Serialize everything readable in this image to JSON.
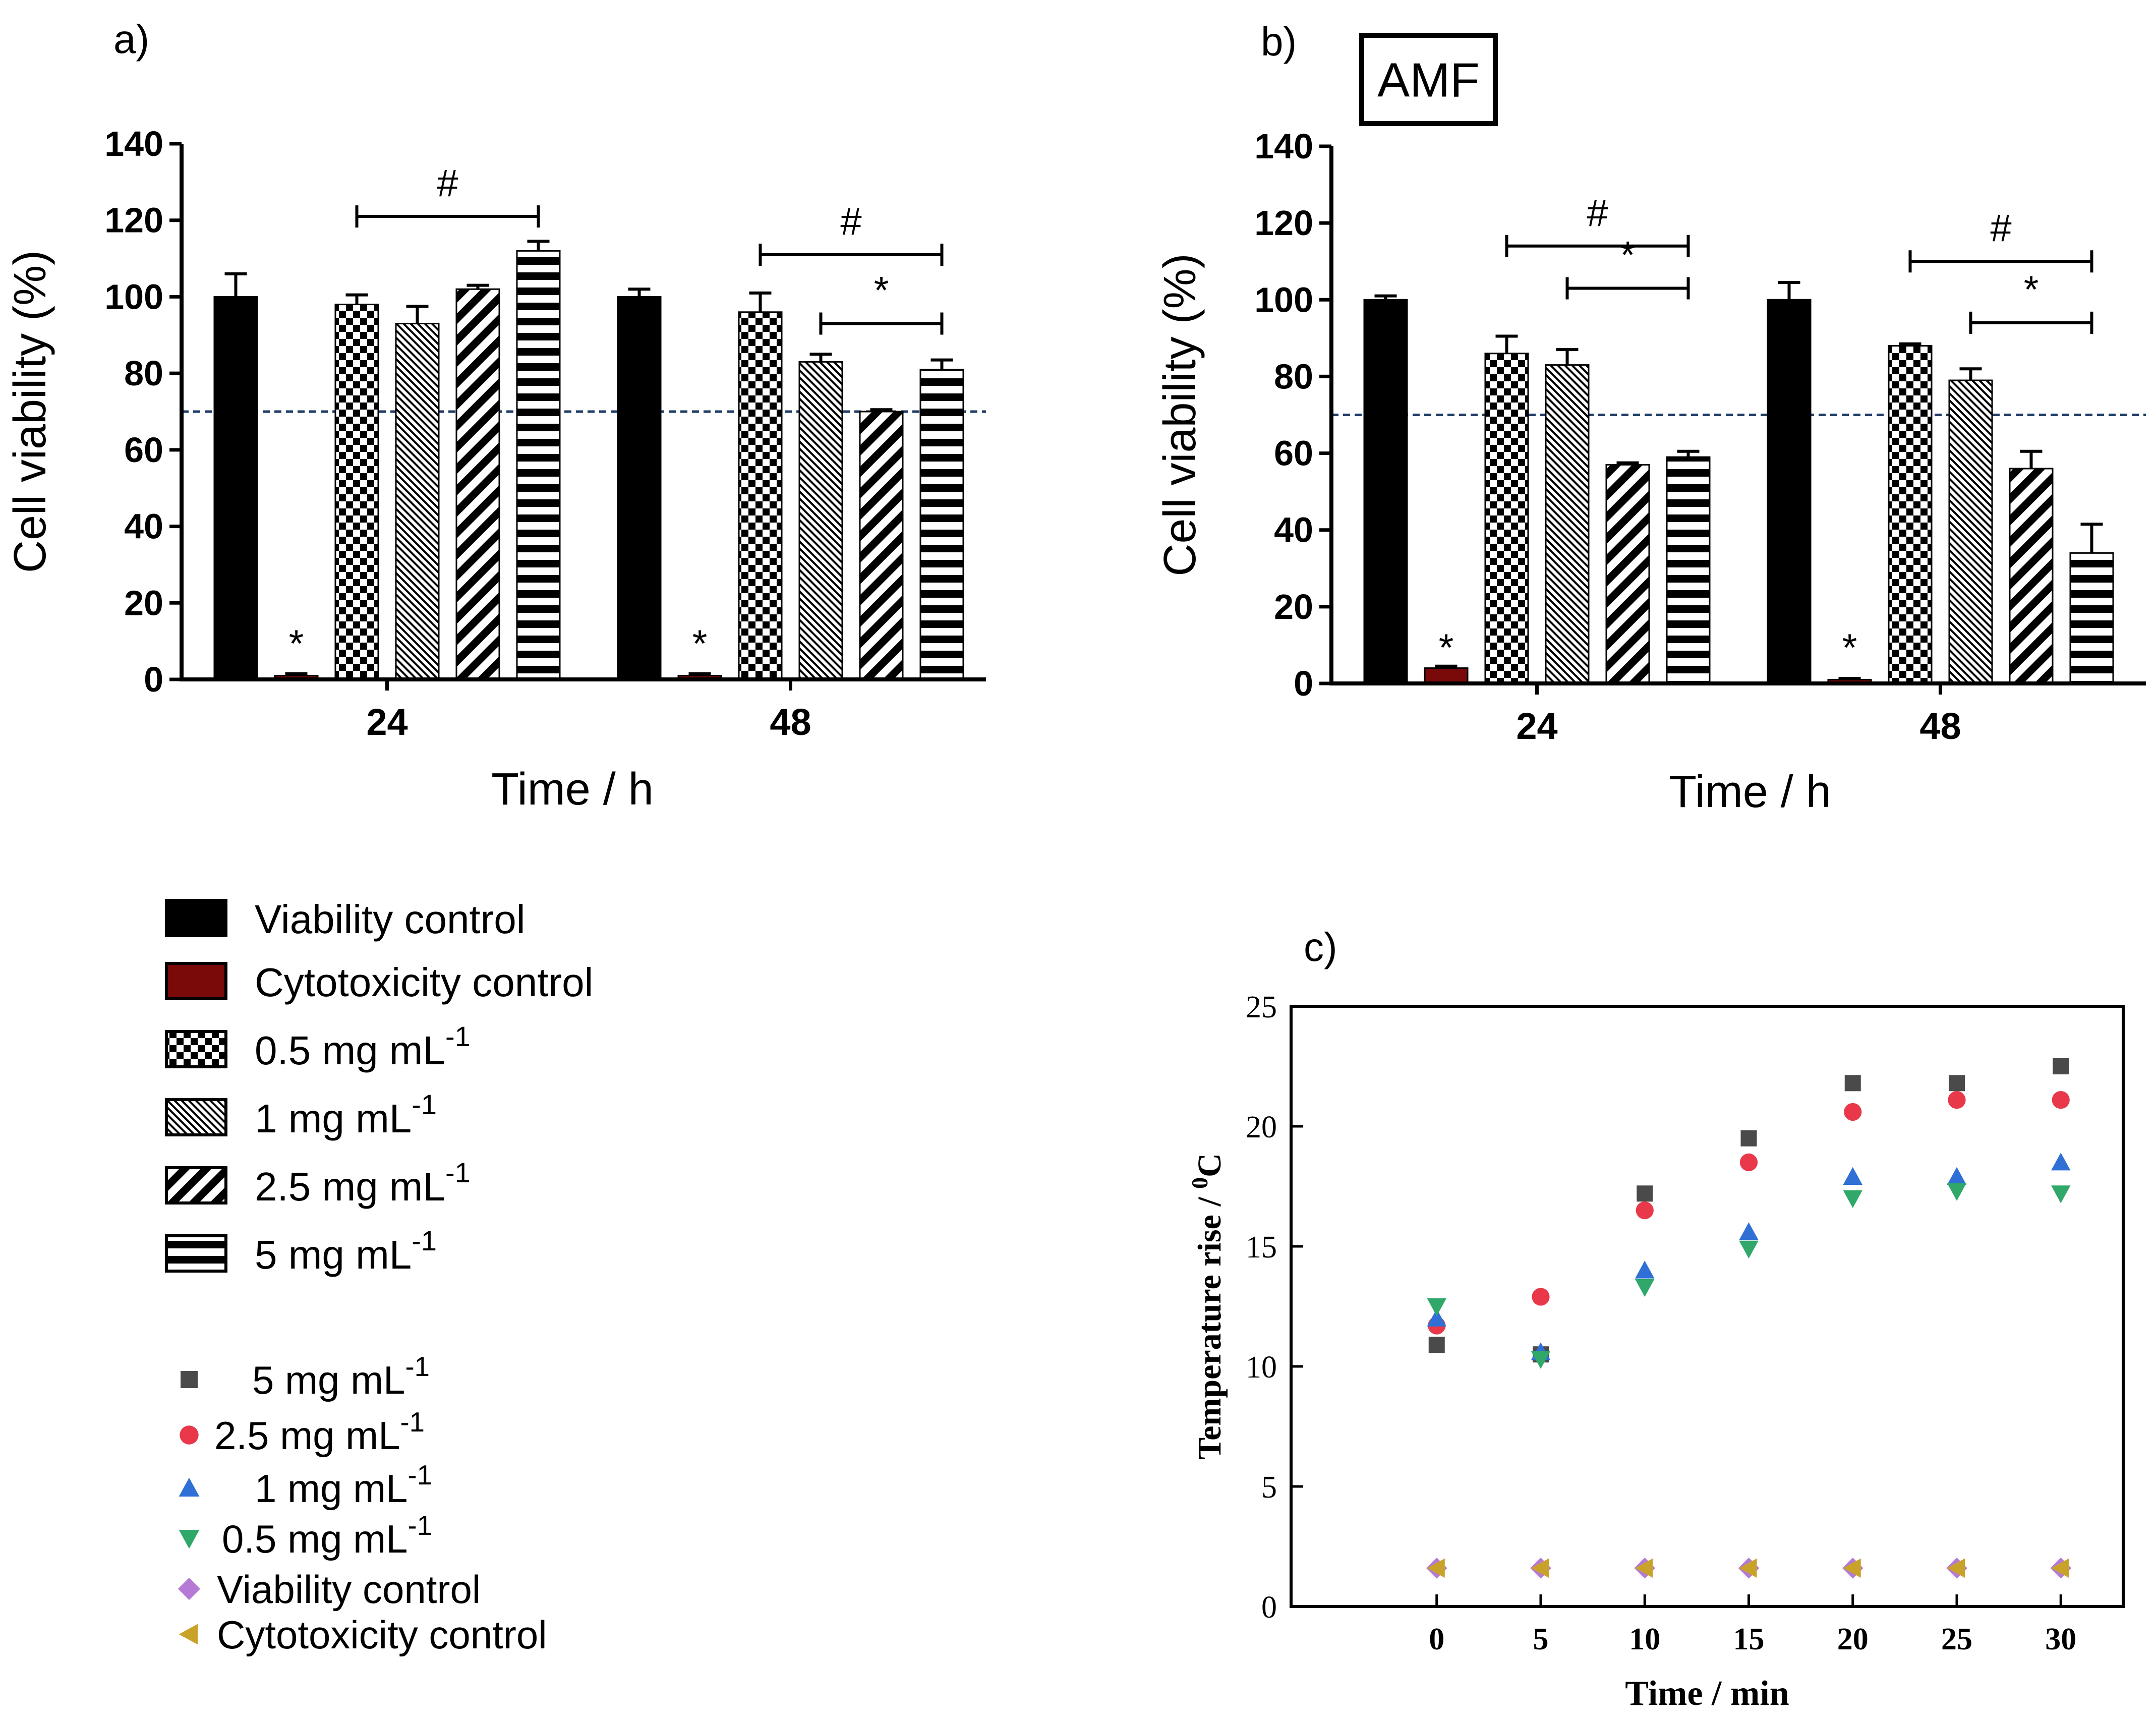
{
  "chart_data": [
    {
      "id": "a",
      "type": "bar",
      "panel_label": "a)",
      "xlabel": "Time / h",
      "ylabel": "Cell viability (%)",
      "ylim": [
        0,
        140
      ],
      "yticks": [
        "0",
        "20",
        "40",
        "60",
        "80",
        "100",
        "120",
        "140"
      ],
      "categories": [
        "24",
        "48"
      ],
      "threshold": 70,
      "series": [
        {
          "name": "Viability control",
          "values": [
            100,
            100
          ],
          "errors": [
            6,
            2
          ]
        },
        {
          "name": "Cytotoxicity control",
          "values": [
            1,
            1
          ],
          "errors": [
            0.5,
            0.5
          ]
        },
        {
          "name": "0.5 mg mL-1",
          "values": [
            98,
            96
          ],
          "errors": [
            2.5,
            5
          ]
        },
        {
          "name": "1 mg mL-1",
          "values": [
            93,
            83
          ],
          "errors": [
            4.5,
            2
          ]
        },
        {
          "name": "2.5 mg mL-1",
          "values": [
            102,
            70
          ],
          "errors": [
            1,
            0.5
          ]
        },
        {
          "name": "5 mg mL-1",
          "values": [
            112,
            81
          ],
          "errors": [
            2.5,
            2.5
          ]
        }
      ],
      "bar_stars": [
        "*",
        "*"
      ],
      "brackets": [
        {
          "group": 0,
          "from": 2,
          "to": 5,
          "level": 121,
          "label": "#"
        },
        {
          "group": 1,
          "from": 2,
          "to": 5,
          "level": 111,
          "label": "#"
        },
        {
          "group": 1,
          "from": 3,
          "to": 5,
          "level": 93,
          "label": "*"
        }
      ]
    },
    {
      "id": "b",
      "type": "bar",
      "panel_label": "b)",
      "boxed_label": "AMF",
      "xlabel": "Time / h",
      "ylabel": "Cell viability (%)",
      "ylim": [
        0,
        140
      ],
      "yticks": [
        "0",
        "20",
        "40",
        "60",
        "80",
        "100",
        "120",
        "140"
      ],
      "categories": [
        "24",
        "48"
      ],
      "threshold": 70,
      "series": [
        {
          "name": "Viability control",
          "values": [
            100,
            100
          ],
          "errors": [
            1,
            4.5
          ]
        },
        {
          "name": "Cytotoxicity control",
          "values": [
            4,
            1
          ],
          "errors": [
            0.5,
            0.3
          ]
        },
        {
          "name": "0.5 mg mL-1",
          "values": [
            86,
            88
          ],
          "errors": [
            4.5,
            0.5
          ]
        },
        {
          "name": "1 mg mL-1",
          "values": [
            83,
            79
          ],
          "errors": [
            4,
            3
          ]
        },
        {
          "name": "2.5 mg mL-1",
          "values": [
            57,
            56
          ],
          "errors": [
            0.5,
            4.5
          ]
        },
        {
          "name": "5 mg mL-1",
          "values": [
            59,
            34
          ],
          "errors": [
            1.5,
            7.5
          ]
        }
      ],
      "bar_stars": [
        "*",
        "*"
      ],
      "brackets": [
        {
          "group": 0,
          "from": 2,
          "to": 5,
          "level": 114,
          "label": "#"
        },
        {
          "group": 0,
          "from": 3,
          "to": 5,
          "level": 103,
          "label": "*"
        },
        {
          "group": 1,
          "from": 2,
          "to": 5,
          "level": 110,
          "label": "#"
        },
        {
          "group": 1,
          "from": 3,
          "to": 5,
          "level": 94,
          "label": "*"
        }
      ]
    },
    {
      "id": "c",
      "type": "scatter",
      "panel_label": "c)",
      "xlabel": "Time / min",
      "ylabel": "Temperature rise / ",
      "ylabel_unit": "C",
      "ylabel_sup": "0",
      "xlim": [
        -7,
        33
      ],
      "ylim": [
        0,
        25
      ],
      "xticks": [
        "0",
        "5",
        "10",
        "15",
        "20",
        "25",
        "30"
      ],
      "yticks": [
        "0",
        "5",
        "10",
        "15",
        "20",
        "25"
      ],
      "x": [
        0,
        5,
        10,
        15,
        20,
        25,
        30
      ],
      "series": [
        {
          "name": "5 mg mL-1",
          "marker": "square",
          "color": "#4a4a4a",
          "values": [
            10.9,
            10.5,
            17.2,
            19.5,
            21.8,
            21.8,
            22.5
          ]
        },
        {
          "name": "2.5 mg mL-1",
          "marker": "circle",
          "color": "#e8384a",
          "values": [
            11.7,
            12.9,
            16.5,
            18.5,
            20.6,
            21.1,
            21.1
          ]
        },
        {
          "name": "1 mg mL-1",
          "marker": "triangle-up",
          "color": "#2f6fd6",
          "values": [
            12.0,
            10.6,
            14.0,
            15.6,
            17.9,
            17.9,
            18.5
          ]
        },
        {
          "name": "0.5 mg mL-1",
          "marker": "triangle-down",
          "color": "#2fa86a",
          "values": [
            12.5,
            10.3,
            13.3,
            14.9,
            17.0,
            17.3,
            17.2
          ]
        },
        {
          "name": "Viability control",
          "marker": "diamond",
          "color": "#b57ad6",
          "values": [
            1.6,
            1.6,
            1.6,
            1.6,
            1.6,
            1.6,
            1.6
          ]
        },
        {
          "name": "Cytotoxicity control",
          "marker": "triangle-left",
          "color": "#c9a22a",
          "values": [
            1.6,
            1.6,
            1.6,
            1.6,
            1.6,
            1.6,
            1.6
          ]
        }
      ]
    }
  ],
  "legend_bars": [
    {
      "base": "Viability control",
      "sup": ""
    },
    {
      "base": "Cytotoxicity control",
      "sup": ""
    },
    {
      "base": "0.5 mg mL",
      "sup": "-1"
    },
    {
      "base": "1 mg mL",
      "sup": "-1"
    },
    {
      "base": "2.5 mg  mL",
      "sup": "-1"
    },
    {
      "base": "5 mg mL",
      "sup": "-1"
    }
  ],
  "legend_scatter": [
    {
      "base": "5 mg mL",
      "sup": "-1"
    },
    {
      "base": "2.5 mg  mL",
      "sup": "-1"
    },
    {
      "base": "1 mg mL",
      "sup": "-1"
    },
    {
      "base": "0.5 mg mL",
      "sup": "-1"
    },
    {
      "base": "Viability control",
      "sup": ""
    },
    {
      "base": "Cytotoxicity control",
      "sup": ""
    }
  ]
}
